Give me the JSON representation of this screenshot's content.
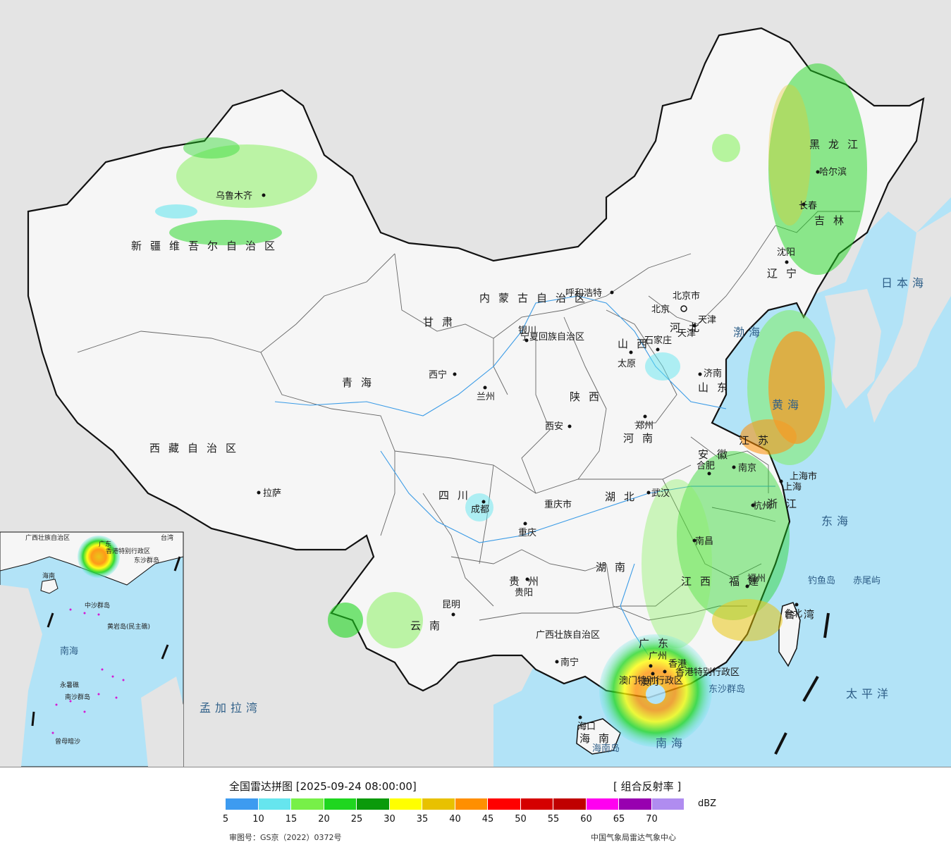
{
  "title": "全国雷达拼图 [2025-09-24 08:00:00]",
  "product": "[ 组合反射率 ]",
  "unit": "dBZ",
  "legend": {
    "colors": [
      "#3d9bf0",
      "#66e5ee",
      "#77f048",
      "#1fd61f",
      "#0b9a0b",
      "#ffff00",
      "#e8c100",
      "#ff8f00",
      "#ff0000",
      "#d50000",
      "#c00000",
      "#ff00f0",
      "#9800b0",
      "#b08cf0"
    ],
    "ticks": [
      "5",
      "10",
      "15",
      "20",
      "25",
      "30",
      "35",
      "40",
      "45",
      "50",
      "55",
      "60",
      "65",
      "70"
    ]
  },
  "footer": {
    "approval": "审图号：GS京（2022）0372号",
    "agency": "中国气象局雷达气象中心"
  },
  "map": {
    "colors": {
      "sea": "#b2e3f7",
      "land": "#ececec",
      "china": "#f6f6f6",
      "border": "#111111"
    },
    "provinces": [
      "新疆维吾尔自治区",
      "西藏自治区",
      "青海",
      "甘肃",
      "内蒙古自治区",
      "黑龙江",
      "吉林",
      "辽宁",
      "河北",
      "山西",
      "陕西",
      "河南",
      "山东",
      "江苏",
      "安徽",
      "湖北",
      "四川",
      "重庆市",
      "贵州",
      "云南",
      "湖南",
      "江西",
      "浙江",
      "福建",
      "广东",
      "广西壮族自治区",
      "海南",
      "台湾",
      "上海市",
      "宁夏回族自治区",
      "天津",
      "北京市"
    ],
    "cities": [
      "乌鲁木齐",
      "拉萨",
      "西宁",
      "兰州",
      "银川",
      "呼和浩特",
      "北京",
      "天津",
      "石家庄",
      "太原",
      "济南",
      "郑州",
      "西安",
      "成都",
      "重庆",
      "贵阳",
      "昆明",
      "南宁",
      "武汉",
      "合肥",
      "南京",
      "上海",
      "杭州",
      "南昌",
      "福州",
      "台北",
      "香港",
      "澳门",
      "广州",
      "海口",
      "沈阳",
      "长春",
      "哈尔滨"
    ],
    "seas": [
      "日本海",
      "渤海",
      "黄海",
      "东海",
      "太平洋",
      "南海",
      "孟加拉湾"
    ],
    "islands": [
      "钓鱼岛",
      "赤尾屿",
      "东沙群岛",
      "海南岛"
    ],
    "inset_labels": [
      "广西壮族自治区",
      "广东",
      "香港特别行政区",
      "台湾",
      "海南",
      "东沙群岛",
      "中沙群岛",
      "黄岩岛(民主礁)",
      "南海",
      "永暑礁",
      "南沙群岛",
      "曾母暗沙"
    ],
    "hk_label": "香港特别行政区",
    "mo_label": "澳门特别行政区"
  }
}
